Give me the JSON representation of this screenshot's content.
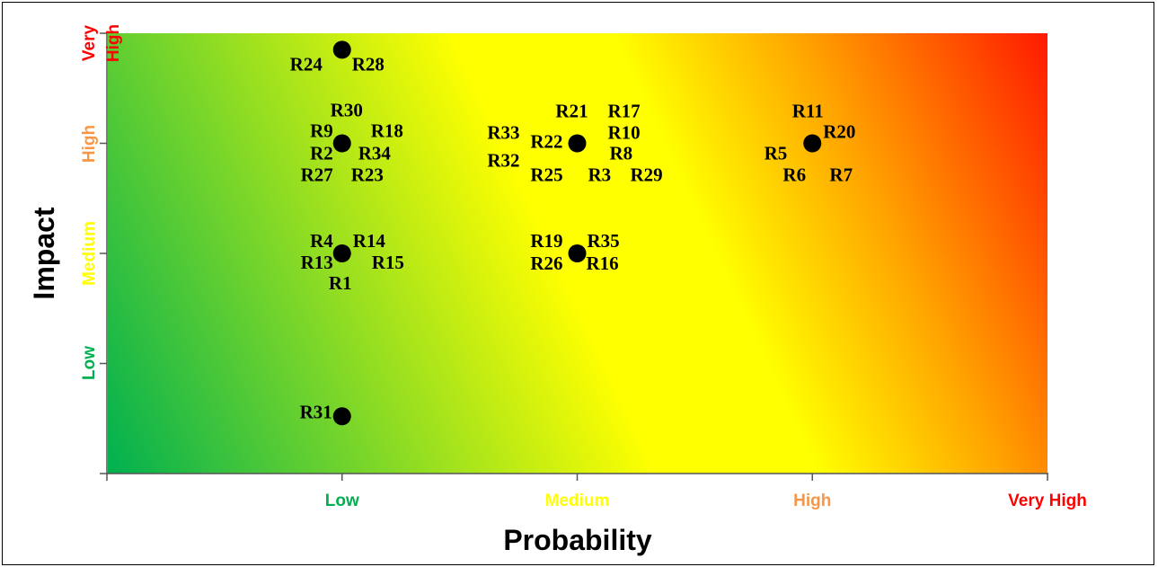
{
  "chart_data": {
    "type": "scatter",
    "title": "",
    "xlabel": "Probability",
    "ylabel": "Impact",
    "x_ticks": [
      {
        "label": "Low",
        "value": 1,
        "color": "#00b050"
      },
      {
        "label": "Medium",
        "value": 2,
        "color": "#ffff00"
      },
      {
        "label": "High",
        "value": 3,
        "color": "#f79646"
      },
      {
        "label": "Very High",
        "value": 4,
        "color": "#ff0000"
      }
    ],
    "y_ticks": [
      {
        "label": "Low",
        "value": 1,
        "color": "#00b050"
      },
      {
        "label": "Medium",
        "value": 2,
        "color": "#ffff00"
      },
      {
        "label": "High",
        "value": 3,
        "color": "#f79646"
      },
      {
        "label": "Very High",
        "value": 4,
        "color": "#ff0000"
      }
    ],
    "xlim": [
      0,
      4
    ],
    "ylim": [
      0,
      4
    ],
    "background": "gradient-green-yellow-red",
    "points": [
      {
        "x": 1,
        "y": 3.85,
        "labels": [
          "R24",
          "R28"
        ]
      },
      {
        "x": 1,
        "y": 3,
        "labels": [
          "R30",
          "R9",
          "R18",
          "R2",
          "R34",
          "R27",
          "R23"
        ]
      },
      {
        "x": 2,
        "y": 3,
        "labels": [
          "R21",
          "R17",
          "R33",
          "R22",
          "R10",
          "R8",
          "R32",
          "R25",
          "R3",
          "R29"
        ]
      },
      {
        "x": 3,
        "y": 3,
        "labels": [
          "R11",
          "R20",
          "R5",
          "R6",
          "R7"
        ]
      },
      {
        "x": 1,
        "y": 2,
        "labels": [
          "R4",
          "R14",
          "R13",
          "R15",
          "R1"
        ]
      },
      {
        "x": 2,
        "y": 2,
        "labels": [
          "R19",
          "R35",
          "R26",
          "R16"
        ]
      },
      {
        "x": 1,
        "y": 0.52,
        "labels": [
          "R31"
        ]
      }
    ]
  }
}
